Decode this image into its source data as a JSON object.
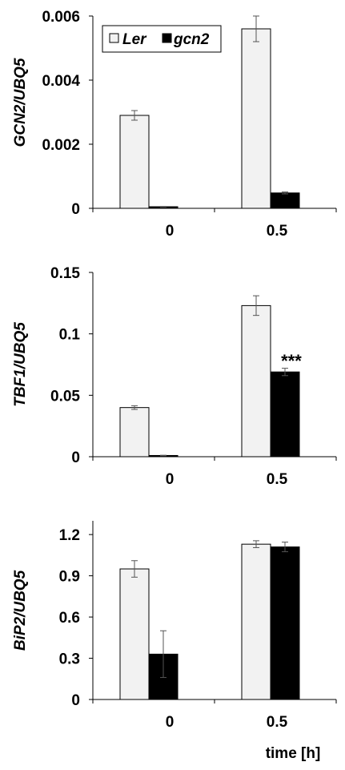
{
  "chart_data": [
    {
      "type": "bar",
      "ylabel": "GCN2/UBQ5",
      "categories": [
        "0",
        "0.5"
      ],
      "ylim": [
        0,
        0.006
      ],
      "yticks": [
        "0",
        "0.002",
        "0.004",
        "0.006"
      ],
      "legend": {
        "placement": "top-left",
        "entries": [
          "Ler",
          "gcn2"
        ]
      },
      "series": [
        {
          "name": "Ler",
          "color": "#f2f2f2",
          "values": [
            0.0029,
            0.0056
          ],
          "errors": [
            0.00015,
            0.0004
          ]
        },
        {
          "name": "gcn2",
          "color": "#000000",
          "values": [
            5e-05,
            0.00048
          ],
          "errors": [
            1e-05,
            3e-05
          ]
        }
      ]
    },
    {
      "type": "bar",
      "ylabel": "TBF1/UBQ5",
      "categories": [
        "0",
        "0.5"
      ],
      "ylim": [
        0,
        0.15
      ],
      "yticks": [
        "0",
        "0.05",
        "0.1",
        "0.15"
      ],
      "annotation": "***",
      "series": [
        {
          "name": "Ler",
          "color": "#f2f2f2",
          "values": [
            0.04,
            0.123
          ],
          "errors": [
            0.0015,
            0.008
          ]
        },
        {
          "name": "gcn2",
          "color": "#000000",
          "values": [
            0.001,
            0.069
          ],
          "errors": [
            0.0002,
            0.003
          ]
        }
      ]
    },
    {
      "type": "bar",
      "ylabel": "BiP2/UBQ5",
      "xlabel": "time [h]",
      "categories": [
        "0",
        "0.5"
      ],
      "ylim": [
        0,
        1.3
      ],
      "yticks": [
        "0",
        "0.3",
        "0.6",
        "0.9",
        "1.2"
      ],
      "series": [
        {
          "name": "Ler",
          "color": "#f2f2f2",
          "values": [
            0.95,
            1.13
          ],
          "errors": [
            0.06,
            0.025
          ]
        },
        {
          "name": "gcn2",
          "color": "#000000",
          "values": [
            0.33,
            1.11
          ],
          "errors": [
            0.17,
            0.035
          ]
        }
      ]
    }
  ]
}
